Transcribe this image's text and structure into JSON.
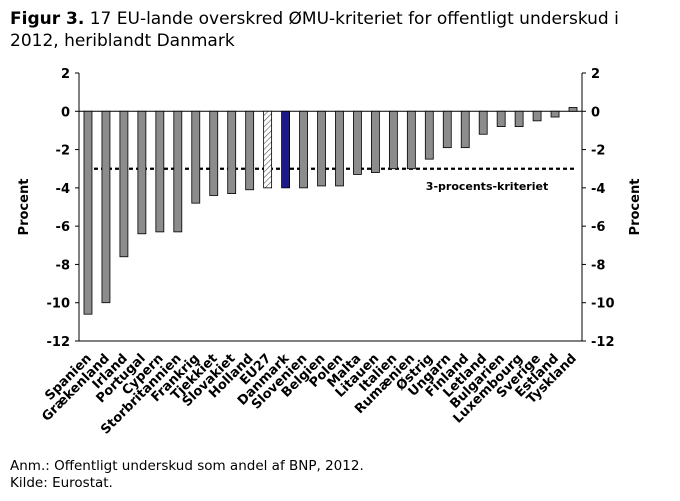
{
  "figure": {
    "label": "Figur 3.",
    "title": "17 EU-lande overskred ØMU-kriteriet for offentligt underskud i 2012, heriblandt Danmark"
  },
  "chart_data": {
    "type": "bar",
    "ylabel": "Procent",
    "ylabel_right": "Procent",
    "ylim": [
      -12,
      2
    ],
    "yticks": [
      2,
      0,
      -2,
      -4,
      -6,
      -8,
      -10,
      -12
    ],
    "categories": [
      "Spanien",
      "Grækenland",
      "Irland",
      "Portugal",
      "Cypern",
      "Storbritannien",
      "Frankrig",
      "Tjekkiet",
      "Slovakiet",
      "Holland",
      "EU27",
      "Danmark",
      "Slovenien",
      "Belgien",
      "Polen",
      "Malta",
      "Litauen",
      "Italien",
      "Rumænien",
      "Østrig",
      "Ungarn",
      "Finland",
      "Letland",
      "Bulgarien",
      "Luxembourg",
      "Sverige",
      "Estland",
      "Tyskland"
    ],
    "values": [
      -10.6,
      -10.0,
      -7.6,
      -6.4,
      -6.3,
      -6.3,
      -4.8,
      -4.4,
      -4.3,
      -4.1,
      -4.0,
      -4.0,
      -4.0,
      -3.9,
      -3.9,
      -3.3,
      -3.2,
      -3.0,
      -3.0,
      -2.5,
      -1.9,
      -1.9,
      -1.2,
      -0.8,
      -0.8,
      -0.5,
      -0.3,
      0.2
    ],
    "highlight": {
      "Danmark": "#1a1a8c",
      "EU27": "hatched"
    },
    "bar_color": "#8c8c8c",
    "reference_line": {
      "value": -3,
      "label": "3-procents-kriteriet",
      "style": "dotted"
    }
  },
  "notes": {
    "anm": "Anm.: Offentligt underskud som andel af BNP, 2012.",
    "source": "Kilde: Eurostat."
  }
}
